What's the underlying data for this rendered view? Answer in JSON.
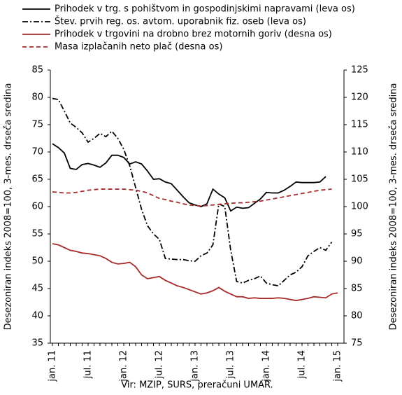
{
  "chart_data": {
    "type": "line",
    "categories": [
      "jan. 11",
      null,
      null,
      null,
      null,
      null,
      "jul. 11",
      null,
      null,
      null,
      null,
      null,
      "jan. 12",
      null,
      null,
      null,
      null,
      null,
      "jul. 12",
      null,
      null,
      null,
      null,
      null,
      "jan. 13",
      null,
      null,
      null,
      null,
      null,
      "jul. 13",
      null,
      null,
      null,
      null,
      null,
      "jan. 14",
      null,
      null,
      null,
      null,
      null,
      "jul. 14",
      null,
      null,
      null,
      null,
      null,
      "jan. 15"
    ],
    "series": [
      {
        "name": "Prihodek v trg. s pohištvom in gospodinjskimi napravami (leva os)",
        "color": "#000000",
        "dash": "solid",
        "axis": "y",
        "values": [
          71.5,
          70.8,
          69.8,
          67,
          66.8,
          67.7,
          67.9,
          67.6,
          67.2,
          68,
          69.4,
          69.4,
          69,
          67.8,
          68.2,
          67.8,
          66.5,
          65,
          65.1,
          64.5,
          64.2,
          63,
          61.8,
          60.7,
          60.3,
          60,
          60.5,
          63.2,
          62.3,
          61.6,
          59.2,
          59.9,
          59.7,
          59.8,
          60.6,
          61.4,
          62.6,
          62.5,
          62.5,
          63,
          63.7,
          64.5,
          64.4,
          64.4,
          64.4,
          64.5,
          65.5,
          null,
          null
        ]
      },
      {
        "name": "Štev. prvih reg. os. avtom. uporabnik fiz. oseb (leva os)",
        "color": "#000000",
        "dash": "dashdot",
        "axis": "y",
        "values": [
          79.8,
          79.6,
          77.5,
          75.3,
          74.5,
          73.5,
          71.8,
          72.5,
          73.4,
          72.8,
          73.8,
          72.5,
          70.5,
          67.5,
          63.5,
          59.5,
          56.5,
          55,
          54,
          50.5,
          50.4,
          50.3,
          50.3,
          50.1,
          50,
          51,
          51.5,
          53,
          60.5,
          60,
          52,
          46.3,
          46,
          46.5,
          46.8,
          47.3,
          46,
          45.7,
          45.5,
          46.5,
          47.5,
          48,
          49,
          51,
          51.8,
          52.5,
          52,
          53.5,
          null
        ]
      },
      {
        "name": "Prihodek v trgovini na drobno brez motornih goriv (desna os)",
        "color": "#a52a2a",
        "dash": "solid",
        "axis": "y2",
        "values": [
          93.2,
          93,
          92.5,
          92,
          91.8,
          91.5,
          91.4,
          91.2,
          91,
          90.5,
          89.8,
          89.5,
          89.6,
          89.8,
          89,
          87.5,
          86.8,
          87,
          87.2,
          86.5,
          86,
          85.5,
          85.2,
          84.8,
          84.4,
          84,
          84.2,
          84.6,
          85.2,
          84.5,
          84,
          83.5,
          83.5,
          83.2,
          83.3,
          83.2,
          83.2,
          83.2,
          83.3,
          83.2,
          83,
          82.8,
          83,
          83.2,
          83.5,
          83.4,
          83.3,
          84,
          84.2
        ]
      },
      {
        "name": "Masa izplačanih neto plač (desna os)",
        "color": "#a52a2a",
        "dash": "dashed",
        "axis": "y2",
        "values": [
          102.7,
          102.6,
          102.5,
          102.5,
          102.6,
          102.8,
          103,
          103.1,
          103.2,
          103.2,
          103.2,
          103.2,
          103.2,
          103.1,
          103,
          102.8,
          102.5,
          102,
          101.5,
          101.3,
          101,
          100.8,
          100.5,
          100.3,
          100.2,
          100.1,
          100.2,
          100.3,
          100.4,
          100.5,
          100.6,
          100.7,
          100.7,
          100.8,
          100.9,
          101,
          101.2,
          101.4,
          101.6,
          101.8,
          102,
          102.2,
          102.4,
          102.6,
          102.8,
          103,
          103.1,
          103.2,
          null
        ]
      }
    ],
    "ylabel": "Desezoniran indeks 2008=100, 3-mes. drseča sredina",
    "y2label": "Desezoniran indeks 2008=100, 3-mes. drseča sredina",
    "ylim": [
      35,
      85
    ],
    "yticks": [
      35,
      40,
      45,
      50,
      55,
      60,
      65,
      70,
      75,
      80,
      85
    ],
    "y2lim": [
      75,
      125
    ],
    "y2ticks": [
      75,
      80,
      85,
      90,
      95,
      100,
      105,
      110,
      115,
      120,
      125
    ],
    "source": "Vir: MZIP, SURS, preračuni UMAR.",
    "grid": false,
    "legend": "top"
  }
}
